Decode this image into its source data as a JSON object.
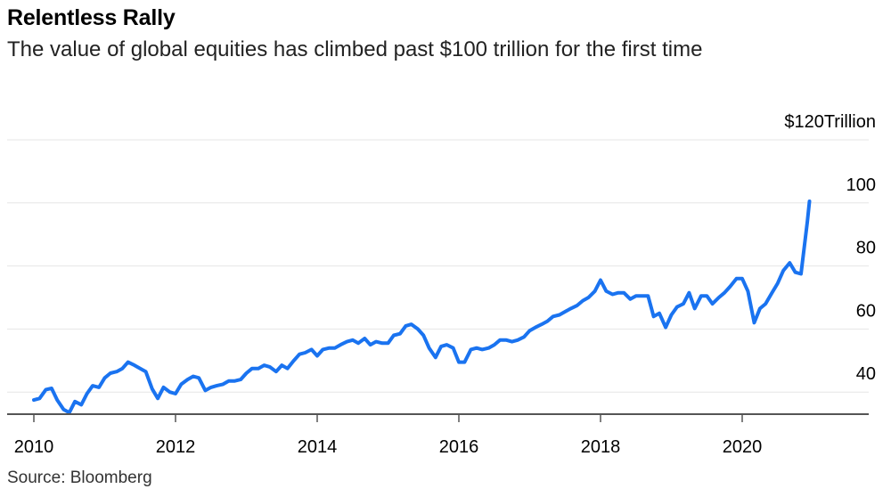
{
  "chart_data": {
    "type": "line",
    "title": "Relentless Rally",
    "subtitle": "The value of global equities has climbed past $100 trillion for the first time",
    "source": "Source: Bloomberg",
    "ylabel": "",
    "xlabel": "",
    "ylim": [
      33,
      120
    ],
    "xlim": [
      2010,
      2021.75
    ],
    "y_ticks": [
      {
        "value": 120,
        "label": "$120Trillion"
      },
      {
        "value": 100,
        "label": "100"
      },
      {
        "value": 80,
        "label": "80"
      },
      {
        "value": 60,
        "label": "60"
      },
      {
        "value": 40,
        "label": "40"
      }
    ],
    "x_ticks": [
      2010,
      2012,
      2014,
      2016,
      2018,
      2020
    ],
    "grid": true,
    "colors": {
      "series": "#1a73f0",
      "grid": "#e6e6e6",
      "axis": "#555555"
    },
    "series": [
      {
        "name": "",
        "points": [
          [
            2010.0,
            37.5
          ],
          [
            2010.08,
            38.0
          ],
          [
            2010.17,
            40.8
          ],
          [
            2010.25,
            41.2
          ],
          [
            2010.33,
            37.5
          ],
          [
            2010.42,
            34.5
          ],
          [
            2010.5,
            33.5
          ],
          [
            2010.58,
            37.0
          ],
          [
            2010.67,
            36.0
          ],
          [
            2010.75,
            39.5
          ],
          [
            2010.83,
            42.0
          ],
          [
            2010.92,
            41.5
          ],
          [
            2011.0,
            44.5
          ],
          [
            2011.08,
            46.0
          ],
          [
            2011.17,
            46.5
          ],
          [
            2011.25,
            47.5
          ],
          [
            2011.33,
            49.5
          ],
          [
            2011.42,
            48.5
          ],
          [
            2011.5,
            47.5
          ],
          [
            2011.58,
            46.5
          ],
          [
            2011.67,
            41.0
          ],
          [
            2011.75,
            38.0
          ],
          [
            2011.83,
            41.5
          ],
          [
            2011.92,
            40.0
          ],
          [
            2012.0,
            39.5
          ],
          [
            2012.08,
            42.5
          ],
          [
            2012.17,
            44.0
          ],
          [
            2012.25,
            45.0
          ],
          [
            2012.33,
            44.5
          ],
          [
            2012.42,
            40.5
          ],
          [
            2012.5,
            41.5
          ],
          [
            2012.58,
            42.0
          ],
          [
            2012.67,
            42.5
          ],
          [
            2012.75,
            43.5
          ],
          [
            2012.83,
            43.5
          ],
          [
            2012.92,
            44.0
          ],
          [
            2013.0,
            46.0
          ],
          [
            2013.08,
            47.5
          ],
          [
            2013.17,
            47.5
          ],
          [
            2013.25,
            48.5
          ],
          [
            2013.33,
            48.0
          ],
          [
            2013.42,
            46.5
          ],
          [
            2013.5,
            48.5
          ],
          [
            2013.58,
            47.5
          ],
          [
            2013.67,
            50.0
          ],
          [
            2013.75,
            52.0
          ],
          [
            2013.83,
            52.5
          ],
          [
            2013.92,
            53.5
          ],
          [
            2014.0,
            51.5
          ],
          [
            2014.08,
            53.5
          ],
          [
            2014.17,
            54.0
          ],
          [
            2014.25,
            54.0
          ],
          [
            2014.33,
            55.0
          ],
          [
            2014.42,
            56.0
          ],
          [
            2014.5,
            56.5
          ],
          [
            2014.58,
            55.5
          ],
          [
            2014.67,
            57.0
          ],
          [
            2014.75,
            55.0
          ],
          [
            2014.83,
            56.0
          ],
          [
            2014.92,
            55.5
          ],
          [
            2015.0,
            55.5
          ],
          [
            2015.08,
            58.0
          ],
          [
            2015.17,
            58.5
          ],
          [
            2015.25,
            61.0
          ],
          [
            2015.33,
            61.5
          ],
          [
            2015.42,
            60.0
          ],
          [
            2015.5,
            58.0
          ],
          [
            2015.58,
            54.0
          ],
          [
            2015.67,
            51.0
          ],
          [
            2015.75,
            54.5
          ],
          [
            2015.83,
            55.0
          ],
          [
            2015.92,
            54.0
          ],
          [
            2016.0,
            49.5
          ],
          [
            2016.08,
            49.5
          ],
          [
            2016.17,
            53.5
          ],
          [
            2016.25,
            54.0
          ],
          [
            2016.33,
            53.5
          ],
          [
            2016.42,
            54.0
          ],
          [
            2016.5,
            55.0
          ],
          [
            2016.58,
            56.5
          ],
          [
            2016.67,
            56.5
          ],
          [
            2016.75,
            56.0
          ],
          [
            2016.83,
            56.5
          ],
          [
            2016.92,
            57.5
          ],
          [
            2017.0,
            59.5
          ],
          [
            2017.08,
            60.5
          ],
          [
            2017.17,
            61.5
          ],
          [
            2017.25,
            62.5
          ],
          [
            2017.33,
            64.0
          ],
          [
            2017.42,
            64.5
          ],
          [
            2017.5,
            65.5
          ],
          [
            2017.58,
            66.5
          ],
          [
            2017.67,
            67.5
          ],
          [
            2017.75,
            69.0
          ],
          [
            2017.83,
            70.0
          ],
          [
            2017.92,
            72.0
          ],
          [
            2018.0,
            75.5
          ],
          [
            2018.08,
            72.0
          ],
          [
            2018.17,
            71.0
          ],
          [
            2018.25,
            71.5
          ],
          [
            2018.33,
            71.5
          ],
          [
            2018.42,
            69.5
          ],
          [
            2018.5,
            70.5
          ],
          [
            2018.58,
            70.5
          ],
          [
            2018.67,
            70.5
          ],
          [
            2018.75,
            64.0
          ],
          [
            2018.83,
            65.0
          ],
          [
            2018.92,
            60.5
          ],
          [
            2019.0,
            64.5
          ],
          [
            2019.08,
            67.0
          ],
          [
            2019.17,
            68.0
          ],
          [
            2019.25,
            71.5
          ],
          [
            2019.33,
            66.5
          ],
          [
            2019.42,
            70.5
          ],
          [
            2019.5,
            70.5
          ],
          [
            2019.58,
            68.0
          ],
          [
            2019.67,
            70.0
          ],
          [
            2019.75,
            71.5
          ],
          [
            2019.83,
            73.5
          ],
          [
            2019.92,
            76.0
          ],
          [
            2020.0,
            76.0
          ],
          [
            2020.08,
            72.0
          ],
          [
            2020.17,
            62.0
          ],
          [
            2020.25,
            66.5
          ],
          [
            2020.33,
            68.0
          ],
          [
            2020.42,
            71.5
          ],
          [
            2020.5,
            74.5
          ],
          [
            2020.58,
            78.5
          ],
          [
            2020.67,
            81.0
          ],
          [
            2020.75,
            78.0
          ],
          [
            2020.83,
            77.5
          ],
          [
            2020.92,
            94.0
          ],
          [
            2020.95,
            100.5
          ]
        ]
      }
    ]
  }
}
